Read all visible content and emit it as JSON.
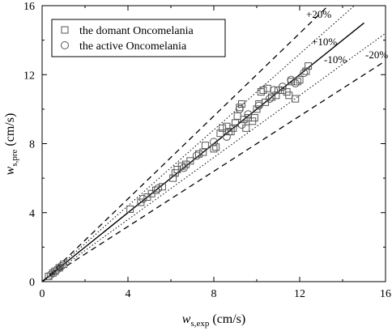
{
  "chart_data": {
    "type": "scatter",
    "xlabel": {
      "var": "w",
      "sub": "s,exp",
      "unit": " (cm/s)"
    },
    "ylabel": {
      "var": "w",
      "sub": "s,pre",
      "unit": " (cm/s)"
    },
    "xlim": [
      0,
      16
    ],
    "ylim": [
      0,
      16
    ],
    "xticks": [
      "0",
      "4",
      "8",
      "12",
      "16"
    ],
    "yticks": [
      "0",
      "4",
      "8",
      "12",
      "16"
    ],
    "grid": false,
    "legend_position": "top-left",
    "series": [
      {
        "name": "the domant Oncomelania",
        "marker": "square",
        "points": [
          [
            0.3,
            0.3
          ],
          [
            0.5,
            0.5
          ],
          [
            0.6,
            0.6
          ],
          [
            0.8,
            0.8
          ],
          [
            1.0,
            1.0
          ],
          [
            4.1,
            4.2
          ],
          [
            4.6,
            4.6
          ],
          [
            4.9,
            4.9
          ],
          [
            5.1,
            5.1
          ],
          [
            5.3,
            5.3
          ],
          [
            5.6,
            5.5
          ],
          [
            6.1,
            6.0
          ],
          [
            6.2,
            6.3
          ],
          [
            6.3,
            6.5
          ],
          [
            6.5,
            6.7
          ],
          [
            6.7,
            6.8
          ],
          [
            6.9,
            7.0
          ],
          [
            7.3,
            7.4
          ],
          [
            7.5,
            7.5
          ],
          [
            7.6,
            7.9
          ],
          [
            8.0,
            7.7
          ],
          [
            8.1,
            7.8
          ],
          [
            8.3,
            8.6
          ],
          [
            8.4,
            8.9
          ],
          [
            8.6,
            9.0
          ],
          [
            8.7,
            8.7
          ],
          [
            8.9,
            8.9
          ],
          [
            8.8,
            8.7
          ],
          [
            9.0,
            9.2
          ],
          [
            9.1,
            9.6
          ],
          [
            9.2,
            10.1
          ],
          [
            9.3,
            10.3
          ],
          [
            9.4,
            9.4
          ],
          [
            9.5,
            8.9
          ],
          [
            9.6,
            9.5
          ],
          [
            9.8,
            9.3
          ],
          [
            9.9,
            9.5
          ],
          [
            10.0,
            10.0
          ],
          [
            10.1,
            10.3
          ],
          [
            10.2,
            11.0
          ],
          [
            10.3,
            11.1
          ],
          [
            10.4,
            10.4
          ],
          [
            10.5,
            11.2
          ],
          [
            10.7,
            10.7
          ],
          [
            10.9,
            10.8
          ],
          [
            11.0,
            11.1
          ],
          [
            11.2,
            11.1
          ],
          [
            11.4,
            11.0
          ],
          [
            11.5,
            10.8
          ],
          [
            11.6,
            11.6
          ],
          [
            11.8,
            10.6
          ],
          [
            11.9,
            11.6
          ],
          [
            12.0,
            11.7
          ],
          [
            12.3,
            12.2
          ],
          [
            12.4,
            12.5
          ]
        ]
      },
      {
        "name": "the active Oncomelania",
        "marker": "circle",
        "points": [
          [
            0.4,
            0.4
          ],
          [
            0.7,
            0.7
          ],
          [
            0.9,
            0.9
          ],
          [
            4.7,
            4.8
          ],
          [
            5.4,
            5.4
          ],
          [
            6.6,
            6.6
          ],
          [
            7.2,
            7.3
          ],
          [
            8.0,
            8.1
          ],
          [
            8.6,
            8.4
          ],
          [
            9.2,
            10.0
          ],
          [
            9.3,
            9.1
          ],
          [
            9.6,
            9.7
          ],
          [
            10.1,
            10.2
          ],
          [
            10.6,
            10.6
          ],
          [
            10.8,
            11.1
          ],
          [
            11.2,
            11.3
          ],
          [
            11.6,
            11.7
          ],
          [
            11.8,
            11.5
          ],
          [
            12.2,
            12.1
          ]
        ]
      }
    ],
    "reference_lines": [
      {
        "label": "",
        "slope": 1.0,
        "x_end": 15,
        "style": "solid"
      },
      {
        "label": "+10%",
        "slope": 1.1,
        "x_end": 15,
        "style": "dotted"
      },
      {
        "label": "-10%",
        "slope": 0.9,
        "x_end": 16,
        "style": "dotted"
      },
      {
        "label": "+20%",
        "slope": 1.2,
        "x_end": 13.3,
        "style": "dashed"
      },
      {
        "label": "-20%",
        "slope": 0.8,
        "x_end": 16,
        "style": "dashed"
      }
    ]
  }
}
